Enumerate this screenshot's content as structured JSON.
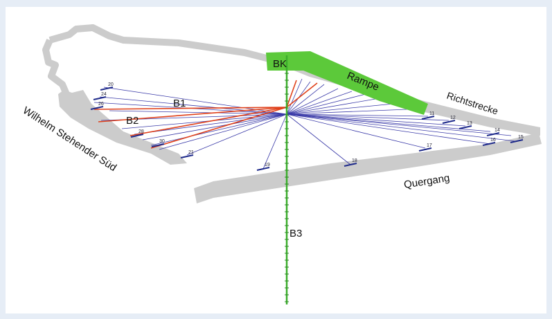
{
  "labels": {
    "bk": "BK",
    "rampe": "Rampe",
    "richtstrecke": "Richtstrecke",
    "b1": "B1",
    "b2": "B2",
    "b3": "B3",
    "wilhelm": "Wilhelm Stehender Süd",
    "quergang": "Quergang"
  },
  "colors": {
    "background": "#e6edf6",
    "gallery": "#cccccc",
    "ramp": "#5cc93a",
    "borehole_b3": "#3cae2c",
    "fan_lines": "#3a3aa8",
    "red_lines": "#e0401a",
    "receivers": "#1e2a8a"
  },
  "receiver_numbers": [
    "20",
    "24",
    "26",
    "28",
    "30",
    "11",
    "12",
    "13",
    "14",
    "15",
    "16",
    "17",
    "18",
    "19",
    "21"
  ]
}
